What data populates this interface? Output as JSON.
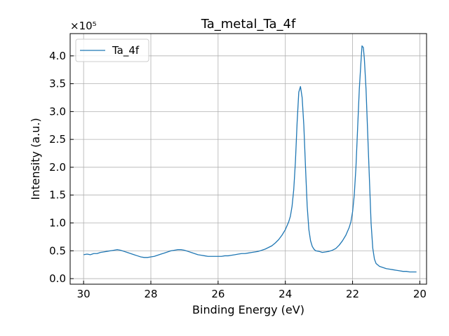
{
  "chart_data": {
    "type": "line",
    "title": "Ta_metal_Ta_4f",
    "xlabel": "Binding Energy (eV)",
    "ylabel": "Intensity (a.u.)",
    "y_scale_label": "×10⁵",
    "y_multiplier": 100000,
    "xlim": [
      30.4,
      19.8
    ],
    "ylim": [
      -0.1,
      4.4
    ],
    "x_ticks": [
      30,
      28,
      26,
      24,
      22,
      20
    ],
    "x_tick_labels": [
      "30",
      "28",
      "26",
      "24",
      "22",
      "20"
    ],
    "y_ticks": [
      0.0,
      0.5,
      1.0,
      1.5,
      2.0,
      2.5,
      3.0,
      3.5,
      4.0
    ],
    "y_tick_labels": [
      "0.0",
      "0.5",
      "1.0",
      "1.5",
      "2.0",
      "2.5",
      "3.0",
      "3.5",
      "4.0"
    ],
    "grid": true,
    "legend_placement": "top-left",
    "colors": {
      "series": "#1f77b4",
      "grid": "#b0b0b0"
    },
    "series": [
      {
        "name": "Ta_4f",
        "points": [
          [
            30.0,
            0.43
          ],
          [
            29.9,
            0.44
          ],
          [
            29.8,
            0.43
          ],
          [
            29.7,
            0.45
          ],
          [
            29.6,
            0.45
          ],
          [
            29.5,
            0.47
          ],
          [
            29.4,
            0.48
          ],
          [
            29.3,
            0.49
          ],
          [
            29.2,
            0.5
          ],
          [
            29.1,
            0.51
          ],
          [
            29.0,
            0.52
          ],
          [
            28.9,
            0.51
          ],
          [
            28.8,
            0.49
          ],
          [
            28.7,
            0.47
          ],
          [
            28.6,
            0.45
          ],
          [
            28.5,
            0.43
          ],
          [
            28.4,
            0.41
          ],
          [
            28.3,
            0.39
          ],
          [
            28.2,
            0.38
          ],
          [
            28.1,
            0.38
          ],
          [
            28.0,
            0.39
          ],
          [
            27.9,
            0.4
          ],
          [
            27.8,
            0.42
          ],
          [
            27.7,
            0.44
          ],
          [
            27.6,
            0.46
          ],
          [
            27.5,
            0.48
          ],
          [
            27.4,
            0.5
          ],
          [
            27.3,
            0.51
          ],
          [
            27.2,
            0.52
          ],
          [
            27.1,
            0.52
          ],
          [
            27.0,
            0.51
          ],
          [
            26.9,
            0.49
          ],
          [
            26.8,
            0.47
          ],
          [
            26.7,
            0.45
          ],
          [
            26.6,
            0.43
          ],
          [
            26.5,
            0.42
          ],
          [
            26.4,
            0.41
          ],
          [
            26.3,
            0.4
          ],
          [
            26.2,
            0.4
          ],
          [
            26.1,
            0.4
          ],
          [
            26.0,
            0.4
          ],
          [
            25.9,
            0.4
          ],
          [
            25.8,
            0.41
          ],
          [
            25.7,
            0.41
          ],
          [
            25.6,
            0.42
          ],
          [
            25.5,
            0.43
          ],
          [
            25.4,
            0.44
          ],
          [
            25.3,
            0.45
          ],
          [
            25.2,
            0.45
          ],
          [
            25.1,
            0.46
          ],
          [
            25.0,
            0.47
          ],
          [
            24.9,
            0.48
          ],
          [
            24.8,
            0.49
          ],
          [
            24.7,
            0.51
          ],
          [
            24.6,
            0.53
          ],
          [
            24.5,
            0.56
          ],
          [
            24.4,
            0.59
          ],
          [
            24.3,
            0.64
          ],
          [
            24.2,
            0.7
          ],
          [
            24.1,
            0.78
          ],
          [
            24.0,
            0.88
          ],
          [
            23.95,
            0.95
          ],
          [
            23.9,
            1.02
          ],
          [
            23.85,
            1.12
          ],
          [
            23.8,
            1.3
          ],
          [
            23.75,
            1.6
          ],
          [
            23.7,
            2.1
          ],
          [
            23.65,
            2.8
          ],
          [
            23.6,
            3.35
          ],
          [
            23.55,
            3.45
          ],
          [
            23.5,
            3.25
          ],
          [
            23.45,
            2.75
          ],
          [
            23.4,
            2.0
          ],
          [
            23.35,
            1.3
          ],
          [
            23.3,
            0.88
          ],
          [
            23.25,
            0.68
          ],
          [
            23.2,
            0.58
          ],
          [
            23.15,
            0.53
          ],
          [
            23.1,
            0.5
          ],
          [
            23.0,
            0.49
          ],
          [
            22.9,
            0.47
          ],
          [
            22.8,
            0.48
          ],
          [
            22.7,
            0.49
          ],
          [
            22.6,
            0.51
          ],
          [
            22.5,
            0.54
          ],
          [
            22.4,
            0.6
          ],
          [
            22.3,
            0.68
          ],
          [
            22.2,
            0.78
          ],
          [
            22.1,
            0.92
          ],
          [
            22.05,
            1.02
          ],
          [
            22.0,
            1.2
          ],
          [
            21.95,
            1.5
          ],
          [
            21.9,
            2.0
          ],
          [
            21.85,
            2.7
          ],
          [
            21.8,
            3.4
          ],
          [
            21.75,
            3.9
          ],
          [
            21.72,
            4.18
          ],
          [
            21.68,
            4.15
          ],
          [
            21.65,
            3.95
          ],
          [
            21.6,
            3.4
          ],
          [
            21.55,
            2.6
          ],
          [
            21.5,
            1.8
          ],
          [
            21.45,
            1.0
          ],
          [
            21.4,
            0.55
          ],
          [
            21.35,
            0.35
          ],
          [
            21.3,
            0.27
          ],
          [
            21.2,
            0.22
          ],
          [
            21.1,
            0.2
          ],
          [
            21.0,
            0.18
          ],
          [
            20.9,
            0.17
          ],
          [
            20.8,
            0.16
          ],
          [
            20.7,
            0.15
          ],
          [
            20.6,
            0.14
          ],
          [
            20.5,
            0.13
          ],
          [
            20.4,
            0.13
          ],
          [
            20.3,
            0.12
          ],
          [
            20.2,
            0.12
          ],
          [
            20.1,
            0.12
          ]
        ]
      }
    ]
  }
}
